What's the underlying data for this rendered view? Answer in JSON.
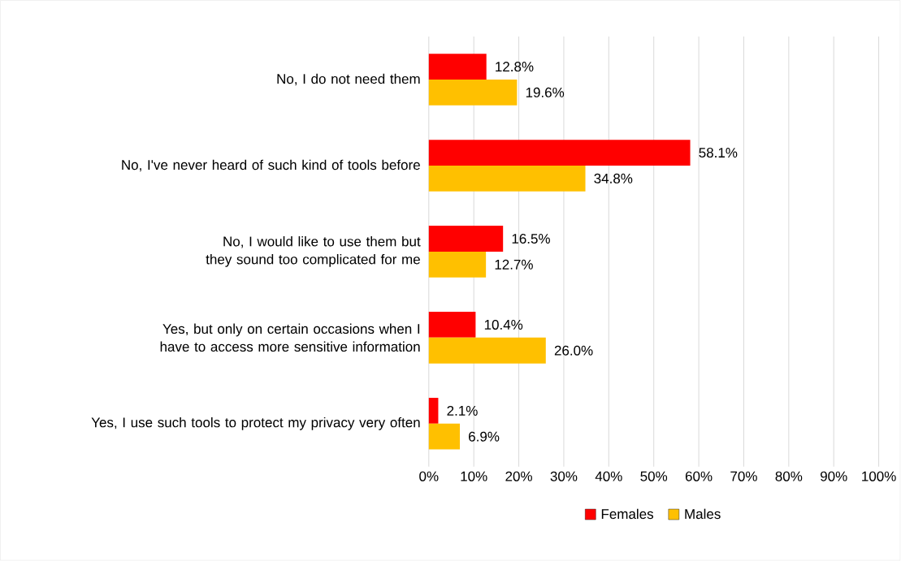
{
  "chart_data": {
    "type": "bar",
    "orientation": "horizontal",
    "categories": [
      "No, I do not need them",
      "No, I've never heard of such kind of tools before",
      "No, I would like to use them but they sound too complicated for me",
      "Yes, but only on certain occasions when I have to access more sensitive information",
      "Yes, I use such tools to protect my privacy very often"
    ],
    "series": [
      {
        "name": "Females",
        "color": "#ff0000",
        "values": [
          12.8,
          58.1,
          16.5,
          10.4,
          2.1
        ],
        "value_labels": [
          "12.8%",
          "58.1%",
          "16.5%",
          "10.4%",
          "2.1%"
        ]
      },
      {
        "name": "Males",
        "color": "#ffc000",
        "values": [
          19.6,
          34.8,
          12.7,
          26.0,
          6.9
        ],
        "value_labels": [
          "19.6%",
          "34.8%",
          "12.7%",
          "26.0%",
          "6.9%"
        ]
      }
    ],
    "xlim": [
      0,
      100
    ],
    "xticks": [
      {
        "value": 0,
        "label": "0%"
      },
      {
        "value": 10,
        "label": "10%"
      },
      {
        "value": 20,
        "label": "20%"
      },
      {
        "value": 30,
        "label": "30%"
      },
      {
        "value": 40,
        "label": "40%"
      },
      {
        "value": 50,
        "label": "50%"
      },
      {
        "value": 60,
        "label": "60%"
      },
      {
        "value": 70,
        "label": "70%"
      },
      {
        "value": 80,
        "label": "80%"
      },
      {
        "value": 90,
        "label": "90%"
      },
      {
        "value": 100,
        "label": "100%"
      }
    ],
    "grid": "x",
    "legend": "bottom"
  }
}
